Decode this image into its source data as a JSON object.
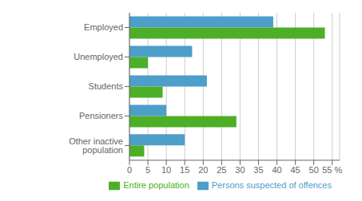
{
  "chart_data": {
    "type": "bar",
    "orientation": "horizontal",
    "categories": [
      "Employed",
      "Unemployed",
      "Students",
      "Pensioners",
      "Other inactive population"
    ],
    "series": [
      {
        "name": "Persons suspected of offences",
        "color": "#4d9ec9",
        "values": [
          39,
          17,
          21,
          10,
          15
        ]
      },
      {
        "name": "Entire population",
        "color": "#4caf27",
        "values": [
          53,
          5,
          9,
          29,
          4
        ]
      }
    ],
    "xlim": [
      0,
      57
    ],
    "xticks": [
      0,
      5,
      10,
      15,
      20,
      25,
      30,
      35,
      40,
      45,
      50,
      {
        "value": 55,
        "label": "55 %"
      }
    ],
    "grid": true,
    "legend": "lower right"
  }
}
